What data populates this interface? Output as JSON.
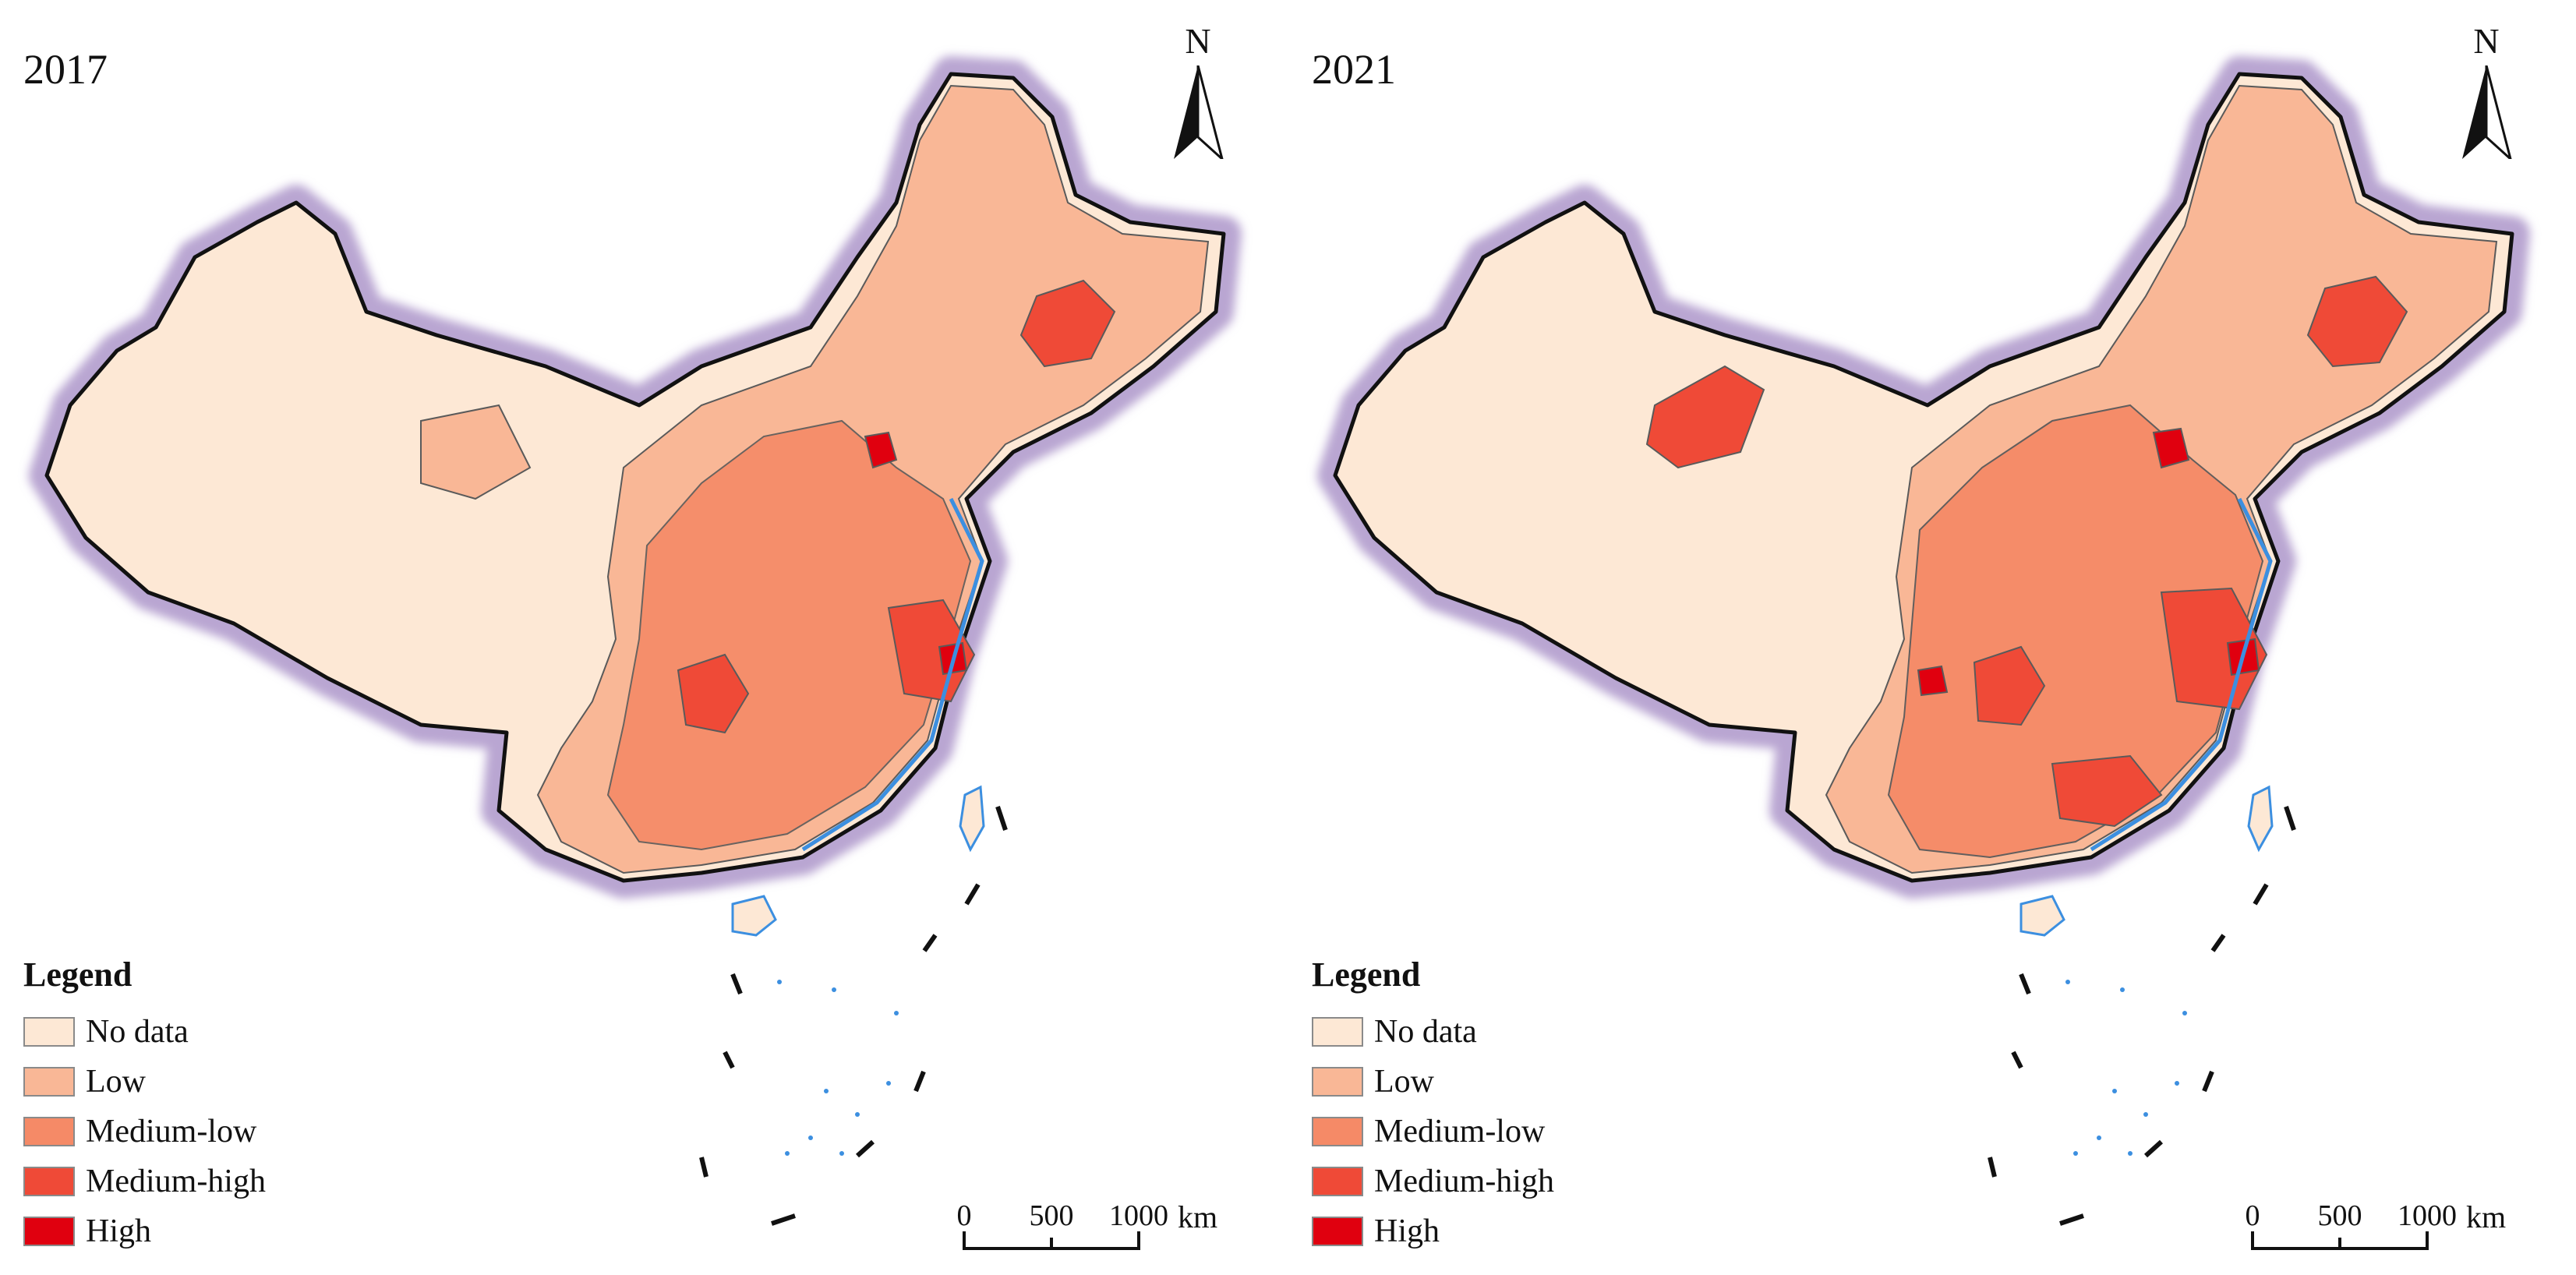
{
  "panels": [
    {
      "year": "2017",
      "legend": {
        "title": "Legend",
        "items": [
          {
            "label": "No data",
            "color": "#fde8d5"
          },
          {
            "label": "Low",
            "color": "#f9b796"
          },
          {
            "label": "Medium-low",
            "color": "#f58a67"
          },
          {
            "label": "Medium-high",
            "color": "#ef4a37"
          },
          {
            "label": "High",
            "color": "#e0000f"
          }
        ]
      },
      "north": "N",
      "scale": {
        "ticks": [
          "0",
          "500",
          "1000"
        ],
        "unit": "km"
      }
    },
    {
      "year": "2021",
      "legend": {
        "title": "Legend",
        "items": [
          {
            "label": "No data",
            "color": "#fde8d5"
          },
          {
            "label": "Low",
            "color": "#f9b796"
          },
          {
            "label": "Medium-low",
            "color": "#f58a67"
          },
          {
            "label": "Medium-high",
            "color": "#ef4a37"
          },
          {
            "label": "High",
            "color": "#e0000f"
          }
        ]
      },
      "north": "N",
      "scale": {
        "ticks": [
          "0",
          "500",
          "1000"
        ],
        "unit": "km"
      }
    }
  ],
  "map_colors": {
    "halo": "#b9a6d2",
    "border": "#111111",
    "coast": "#3c8fe0",
    "no_data": "#fde8d5",
    "low": "#f9b796",
    "medium_low": "#f58a67",
    "medium_high": "#ef4a37",
    "high": "#e0000f"
  }
}
